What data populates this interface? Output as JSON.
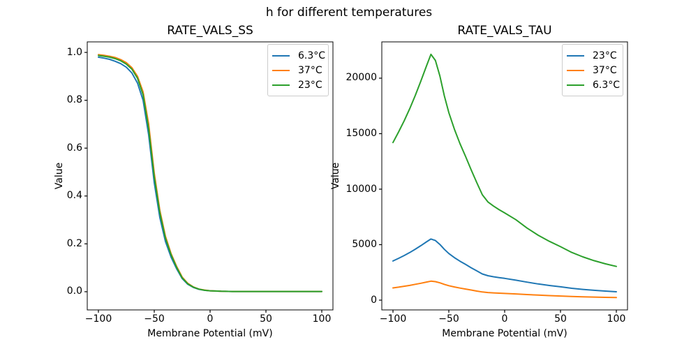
{
  "figure": {
    "suptitle": "h for different temperatures",
    "background": "#ffffff"
  },
  "style": {
    "spine_color": "#000000",
    "text_color": "#000000",
    "line_width": 2,
    "legend_border": "#cccccc"
  },
  "chart_data": [
    {
      "type": "line",
      "title": "RATE_VALS_SS",
      "xlabel": "Membrane Potential (mV)",
      "ylabel": "Value",
      "grid": false,
      "legend_position": "upper right",
      "xlim": [
        -110,
        110
      ],
      "ylim": [
        -0.076,
        1.044
      ],
      "xticks": {
        "values": [
          -100,
          -50,
          0,
          50,
          100
        ],
        "labels": [
          "−100",
          "−50",
          "0",
          "50",
          "100"
        ]
      },
      "yticks": {
        "values": [
          0.0,
          0.2,
          0.4,
          0.6,
          0.8,
          1.0
        ],
        "labels": [
          "0.0",
          "0.2",
          "0.4",
          "0.6",
          "0.8",
          "1.0"
        ]
      },
      "x": [
        -100,
        -95,
        -90,
        -85,
        -80,
        -75,
        -70,
        -65,
        -60,
        -55,
        -50,
        -45,
        -40,
        -35,
        -30,
        -25,
        -20,
        -15,
        -10,
        -5,
        0,
        10,
        20,
        30,
        40,
        50,
        60,
        70,
        80,
        90,
        100
      ],
      "series": [
        {
          "name": "6.3°C",
          "color": "#1f77b4",
          "values": [
            0.98,
            0.976,
            0.971,
            0.963,
            0.953,
            0.938,
            0.914,
            0.872,
            0.8,
            0.655,
            0.455,
            0.31,
            0.21,
            0.145,
            0.096,
            0.055,
            0.031,
            0.018,
            0.01,
            0.006,
            0.004,
            0.002,
            0.001,
            0.001,
            0.001,
            0.001,
            0.001,
            0.001,
            0.001,
            0.001,
            0.001
          ]
        },
        {
          "name": "37°C",
          "color": "#ff7f0e",
          "values": [
            0.991,
            0.988,
            0.984,
            0.979,
            0.97,
            0.957,
            0.936,
            0.9,
            0.835,
            0.7,
            0.495,
            0.34,
            0.232,
            0.16,
            0.106,
            0.061,
            0.035,
            0.02,
            0.011,
            0.007,
            0.004,
            0.002,
            0.001,
            0.001,
            0.001,
            0.001,
            0.001,
            0.001,
            0.001,
            0.001,
            0.001
          ]
        },
        {
          "name": "23°C",
          "color": "#2ca02c",
          "values": [
            0.987,
            0.984,
            0.98,
            0.974,
            0.965,
            0.951,
            0.93,
            0.892,
            0.823,
            0.68,
            0.48,
            0.33,
            0.224,
            0.155,
            0.102,
            0.058,
            0.033,
            0.019,
            0.011,
            0.006,
            0.004,
            0.002,
            0.001,
            0.001,
            0.001,
            0.001,
            0.001,
            0.001,
            0.001,
            0.001,
            0.001
          ]
        }
      ]
    },
    {
      "type": "line",
      "title": "RATE_VALS_TAU",
      "xlabel": "Membrane Potential (mV)",
      "ylabel": "Value",
      "grid": false,
      "legend_position": "upper right",
      "xlim": [
        -110,
        110
      ],
      "ylim": [
        -880,
        23270
      ],
      "xticks": {
        "values": [
          -100,
          -50,
          0,
          50,
          100
        ],
        "labels": [
          "−100",
          "−50",
          "0",
          "50",
          "100"
        ]
      },
      "yticks": {
        "values": [
          0,
          5000,
          10000,
          15000,
          20000
        ],
        "labels": [
          "0",
          "5000",
          "10000",
          "15000",
          "20000"
        ]
      },
      "x": [
        -100,
        -95,
        -90,
        -85,
        -80,
        -75,
        -70,
        -66,
        -62,
        -58,
        -54,
        -50,
        -45,
        -40,
        -35,
        -30,
        -25,
        -20,
        -15,
        -10,
        -5,
        0,
        10,
        20,
        30,
        40,
        50,
        60,
        70,
        80,
        90,
        100
      ],
      "series": [
        {
          "name": "23°C",
          "color": "#1f77b4",
          "values": [
            3530,
            3770,
            4020,
            4290,
            4590,
            4910,
            5250,
            5510,
            5370,
            5020,
            4580,
            4200,
            3830,
            3510,
            3220,
            2920,
            2640,
            2360,
            2200,
            2110,
            2030,
            1960,
            1800,
            1620,
            1460,
            1320,
            1200,
            1070,
            970,
            890,
            815,
            755
          ]
        },
        {
          "name": "37°C",
          "color": "#ff7f0e",
          "values": [
            1100,
            1170,
            1250,
            1330,
            1430,
            1525,
            1630,
            1710,
            1670,
            1560,
            1420,
            1305,
            1190,
            1090,
            1000,
            910,
            820,
            735,
            685,
            655,
            630,
            607,
            560,
            502,
            452,
            410,
            372,
            332,
            301,
            275,
            253,
            235
          ]
        },
        {
          "name": "6.3°C",
          "color": "#2ca02c",
          "values": [
            14200,
            15150,
            16150,
            17250,
            18450,
            19750,
            21100,
            22150,
            21600,
            20200,
            18400,
            16900,
            15400,
            14100,
            12950,
            11750,
            10600,
            9500,
            8850,
            8480,
            8150,
            7860,
            7250,
            6500,
            5850,
            5300,
            4820,
            4300,
            3900,
            3560,
            3280,
            3040
          ]
        }
      ]
    }
  ]
}
